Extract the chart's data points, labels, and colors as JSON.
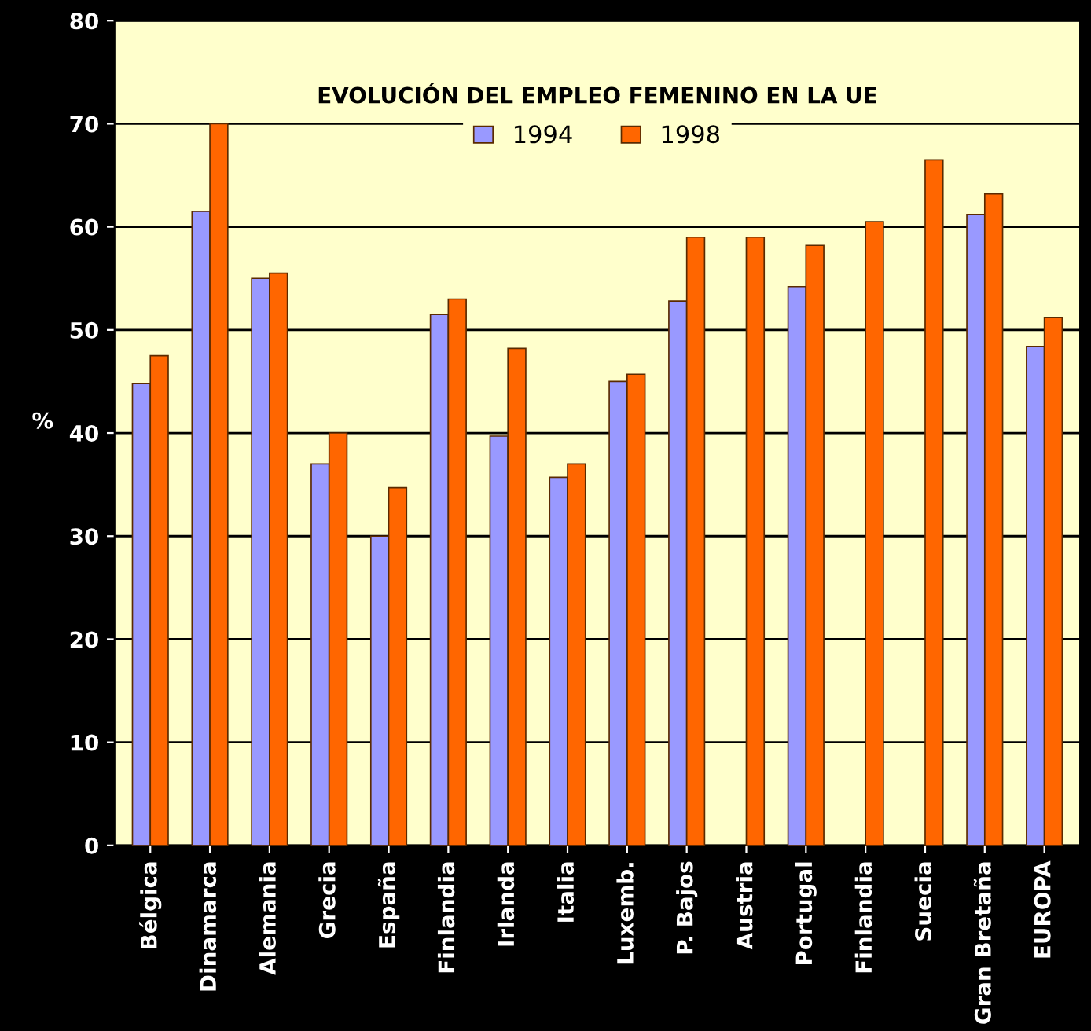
{
  "chart_data": {
    "type": "bar",
    "title": "EVOLUCIÓN DEL EMPLEO FEMENINO EN LA UE",
    "ylabel": "%",
    "categories": [
      "Bélgica",
      "Dinamarca",
      "Alemania",
      "Grecia",
      "España",
      "Finlandia",
      "Irlanda",
      "Italia",
      "Luxemb.",
      "P. Bajos",
      "Austria",
      "Portugal",
      "Finlandia",
      "Suecia",
      "Gran Bretaña",
      "EUROPA"
    ],
    "series": [
      {
        "name": "1994",
        "color": "#9999ff",
        "values": [
          44.8,
          61.5,
          55,
          37,
          30,
          51.5,
          39.7,
          35.7,
          45,
          52.8,
          null,
          54.2,
          null,
          null,
          61.2,
          48.4
        ]
      },
      {
        "name": "1998",
        "color": "#ff6600",
        "values": [
          47.5,
          70,
          55.5,
          40,
          34.7,
          53,
          48.2,
          37,
          45.7,
          59,
          59,
          58.2,
          60.5,
          66.5,
          63.2,
          51.2
        ]
      }
    ],
    "ylim": [
      0,
      80
    ],
    "yticks": [
      0,
      10,
      20,
      30,
      40,
      50,
      60,
      70,
      80
    ],
    "grid": "y",
    "legend": "top"
  }
}
